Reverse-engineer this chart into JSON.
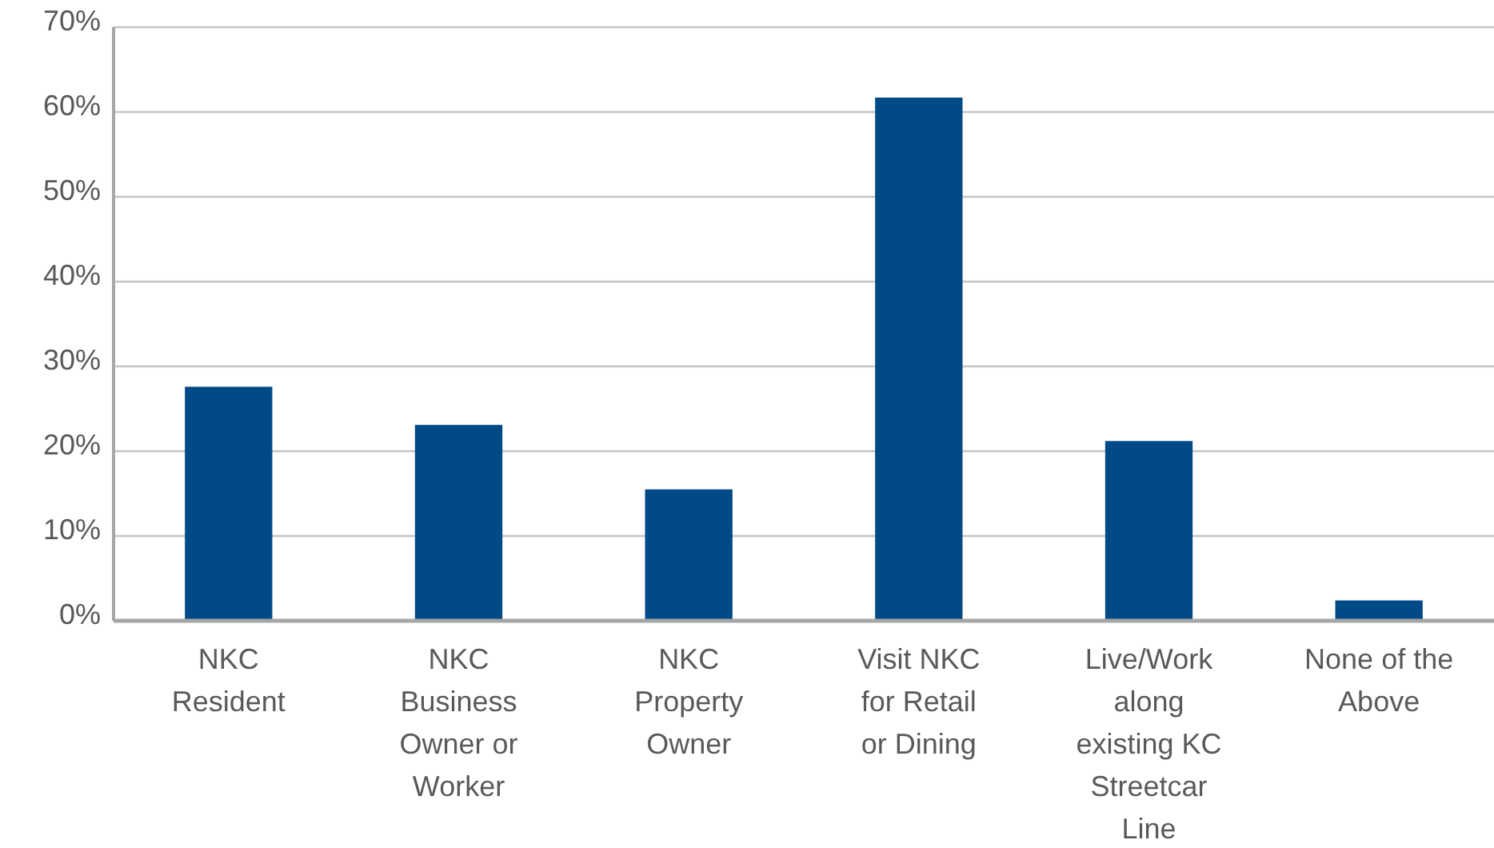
{
  "chart_data": {
    "type": "bar",
    "categories": [
      "NKC Resident",
      "NKC Business Owner or Worker",
      "NKC Property Owner",
      "Visit NKC for Retail or Dining",
      "Live/Work along existing KC Streetcar Line",
      "None of the Above"
    ],
    "values": [
      27.6,
      23.1,
      15.5,
      61.7,
      21.2,
      2.4
    ],
    "color": "#004a87",
    "ylim": [
      0,
      70
    ],
    "yticks": [
      {
        "value": 0,
        "label": "0%"
      },
      {
        "value": 10,
        "label": "10%"
      },
      {
        "value": 20,
        "label": "20%"
      },
      {
        "value": 30,
        "label": "30%"
      },
      {
        "value": 40,
        "label": "40%"
      },
      {
        "value": 50,
        "label": "50%"
      },
      {
        "value": 60,
        "label": "60%"
      },
      {
        "value": 70,
        "label": "70%"
      }
    ],
    "grid": "y"
  }
}
